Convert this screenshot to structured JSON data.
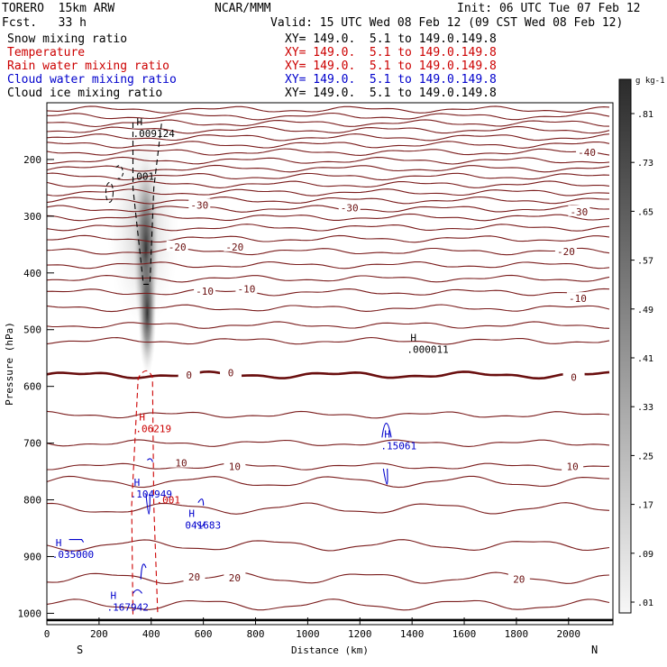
{
  "header": {
    "model": "TORERO  15km ARW",
    "center": "NCAR/MMM",
    "init": "Init: 06 UTC Tue 07 Feb 12",
    "fcst": "Fcst.   33 h",
    "valid": "Valid: 15 UTC Wed 08 Feb 12 (09 CST Wed 08 Feb 12)"
  },
  "fields": [
    {
      "name": "Snow mixing ratio",
      "xy": "XY= 149.0.  5.1 to 149.0.149.8",
      "color": "#000000"
    },
    {
      "name": "Temperature",
      "xy": "XY= 149.0.  5.1 to 149.0.149.8",
      "color": "#cc0000"
    },
    {
      "name": "Rain water mixing ratio",
      "xy": "XY= 149.0.  5.1 to 149.0.149.8",
      "color": "#cc0000"
    },
    {
      "name": "Cloud water mixing ratio",
      "xy": "XY= 149.0.  5.1 to 149.0.149.8",
      "color": "#0000cc"
    },
    {
      "name": "Cloud ice mixing ratio",
      "xy": "XY= 149.0.  5.1 to 149.0.149.8",
      "color": "#000000"
    }
  ],
  "colors": {
    "temperature": "#7a1c1c",
    "freezing": "#6a0f0f",
    "rain": "#cc0000",
    "cloud_water": "#0000cc",
    "ice": "#000000"
  },
  "chart_data": {
    "type": "cross-section",
    "xlabel": "Distance (km)",
    "ylabel": "Pressure (hPa)",
    "xlim": [
      0,
      2170
    ],
    "ylim": [
      100,
      1020
    ],
    "xticks": [
      0,
      200,
      400,
      600,
      800,
      1000,
      1200,
      1400,
      1600,
      1800,
      2000
    ],
    "yticks": [
      200,
      300,
      400,
      500,
      600,
      700,
      800,
      900,
      1000
    ],
    "left_end": "S",
    "right_end": "N",
    "colorbar": {
      "units": "g kg-1",
      "labels": [
        ".01",
        ".09",
        ".17",
        ".25",
        ".33",
        ".41",
        ".49",
        ".57",
        ".65",
        ".73",
        ".81"
      ]
    },
    "temperature_levels": [
      {
        "p": 112,
        "label": ""
      },
      {
        "p": 124,
        "label": ""
      },
      {
        "p": 136,
        "label": ""
      },
      {
        "p": 148,
        "label": ""
      },
      {
        "p": 161,
        "label": ""
      },
      {
        "p": 174,
        "label": ""
      },
      {
        "p": 187,
        "label": "-40"
      },
      {
        "p": 202,
        "label": ""
      },
      {
        "p": 216,
        "label": ""
      },
      {
        "p": 230,
        "label": ""
      },
      {
        "p": 244,
        "label": ""
      },
      {
        "p": 258,
        "label": ""
      },
      {
        "p": 272,
        "label": ""
      },
      {
        "p": 287,
        "label": "-30"
      },
      {
        "p": 302,
        "label": ""
      },
      {
        "p": 320,
        "label": ""
      },
      {
        "p": 340,
        "label": ""
      },
      {
        "p": 362,
        "label": "-20"
      },
      {
        "p": 386,
        "label": ""
      },
      {
        "p": 410,
        "label": ""
      },
      {
        "p": 434,
        "label": "-10"
      },
      {
        "p": 462,
        "label": ""
      },
      {
        "p": 492,
        "label": ""
      },
      {
        "p": 520,
        "label": ""
      },
      {
        "p": 580,
        "label": "0"
      },
      {
        "p": 650,
        "label": ""
      },
      {
        "p": 700,
        "label": ""
      },
      {
        "p": 741,
        "label": "10"
      },
      {
        "p": 768,
        "label": ""
      },
      {
        "p": 815,
        "label": ""
      },
      {
        "p": 880,
        "label": ""
      },
      {
        "p": 938,
        "label": "20"
      },
      {
        "p": 985,
        "label": ""
      }
    ],
    "temperature_labels": [
      {
        "x": 2070,
        "p": 187,
        "text": "-40"
      },
      {
        "x": 585,
        "p": 280,
        "text": "-30"
      },
      {
        "x": 1160,
        "p": 285,
        "text": "-30"
      },
      {
        "x": 2040,
        "p": 292,
        "text": "-30"
      },
      {
        "x": 500,
        "p": 354,
        "text": "-20"
      },
      {
        "x": 720,
        "p": 354,
        "text": "-20"
      },
      {
        "x": 1990,
        "p": 362,
        "text": "-20"
      },
      {
        "x": 605,
        "p": 432,
        "text": "-10"
      },
      {
        "x": 765,
        "p": 428,
        "text": "-10"
      },
      {
        "x": 2035,
        "p": 445,
        "text": "-10"
      },
      {
        "x": 545,
        "p": 580,
        "text": "0"
      },
      {
        "x": 705,
        "p": 576,
        "text": "0"
      },
      {
        "x": 2020,
        "p": 584,
        "text": "0"
      },
      {
        "x": 515,
        "p": 735,
        "text": "10"
      },
      {
        "x": 720,
        "p": 741,
        "text": "10"
      },
      {
        "x": 2015,
        "p": 741,
        "text": "10"
      },
      {
        "x": 565,
        "p": 936,
        "text": "20"
      },
      {
        "x": 720,
        "p": 937,
        "text": "20"
      },
      {
        "x": 1810,
        "p": 940,
        "text": "20"
      }
    ],
    "maxima": [
      {
        "x": 330,
        "p": 140,
        "text": "H\n.009124",
        "color": "#000000"
      },
      {
        "x": 320,
        "p": 236,
        "text": ".001",
        "color": "#000000"
      },
      {
        "x": 1380,
        "p": 520,
        "text": "H\n.000011",
        "color": "#000000"
      },
      {
        "x": 340,
        "p": 660,
        "text": "H\n.06219",
        "color": "#cc0000"
      },
      {
        "x": 1280,
        "p": 690,
        "text": "H\n.15061",
        "color": "#0000cc"
      },
      {
        "x": 320,
        "p": 775,
        "text": "H\n.104949",
        "color": "#0000cc"
      },
      {
        "x": 420,
        "p": 806,
        "text": ".001",
        "color": "#cc0000"
      },
      {
        "x": 530,
        "p": 830,
        "text": "H\n041683",
        "color": "#0000cc"
      },
      {
        "x": 20,
        "p": 882,
        "text": "H\n.035000",
        "color": "#0000cc"
      },
      {
        "x": 230,
        "p": 975,
        "text": "H\n.167942",
        "color": "#0000cc"
      }
    ]
  }
}
